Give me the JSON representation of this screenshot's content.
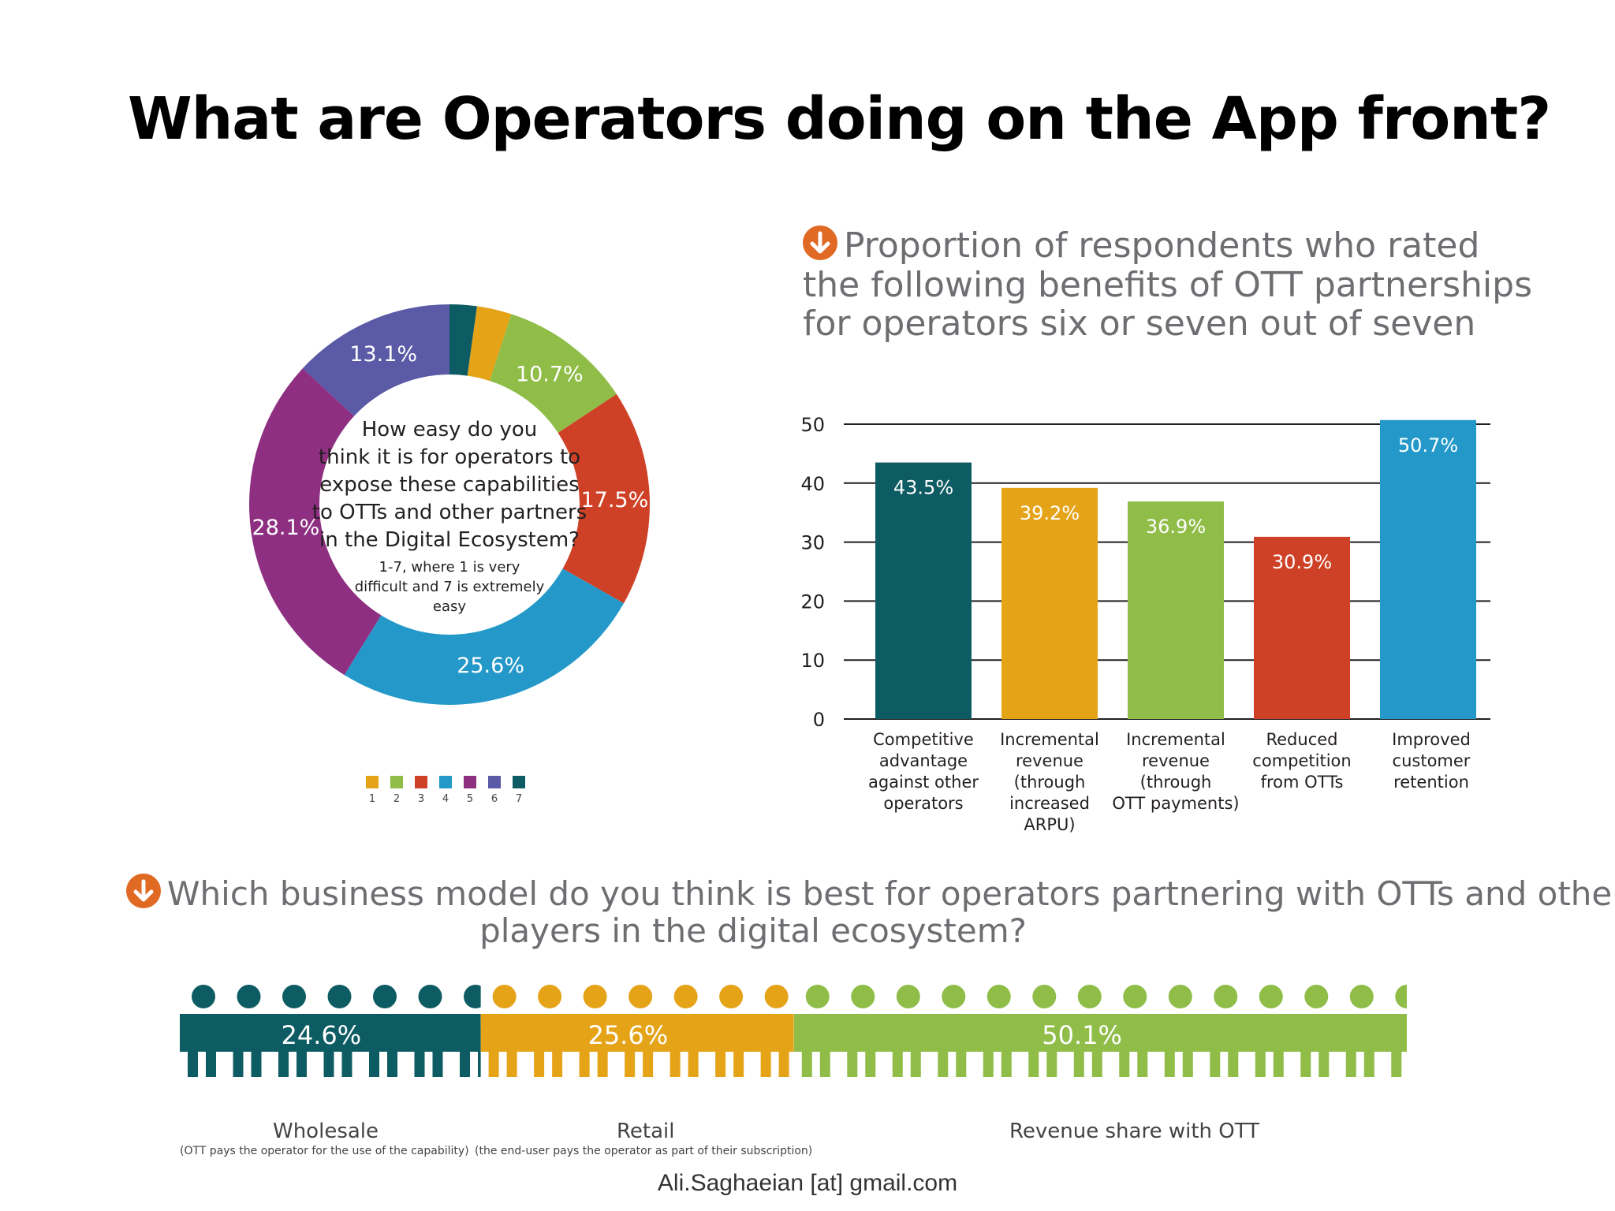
{
  "page": {
    "title": "What are Operators doing on the App front?",
    "footer": "Ali.Saghaeian [at] gmail.com"
  },
  "icons": {
    "section_marker": "down-arrow-circle-icon",
    "section_marker_color": "#e06a24"
  },
  "chart_data": [
    {
      "type": "pie",
      "variant": "donut",
      "center_text": {
        "question": [
          "How easy do you",
          "think it is for operators to",
          "expose these capabilities",
          "to OTTs and other partners",
          "in the Digital Ecosystem?"
        ],
        "note": [
          "1-7, where 1 is very",
          "difficult and 7 is extremely",
          "easy"
        ]
      },
      "slices": [
        {
          "category": "7",
          "value": 2.2,
          "label": "2.2%",
          "color": "#0e5c63"
        },
        {
          "category": "1",
          "value": 2.8,
          "label": "2.8%",
          "color": "#e5a318"
        },
        {
          "category": "2",
          "value": 10.7,
          "label": "10.7%",
          "color": "#8fbd48"
        },
        {
          "category": "3",
          "value": 17.5,
          "label": "17.5%",
          "color": "#cf4127"
        },
        {
          "category": "4",
          "value": 25.6,
          "label": "25.6%",
          "color": "#2499c9"
        },
        {
          "category": "5",
          "value": 28.1,
          "label": "28.1%",
          "color": "#8e2f82"
        },
        {
          "category": "6",
          "value": 13.1,
          "label": "13.1%",
          "color": "#5a5aa6"
        }
      ],
      "legend": {
        "placement": "bottom",
        "items": [
          {
            "label": "1",
            "color": "#e5a318"
          },
          {
            "label": "2",
            "color": "#8fbd48"
          },
          {
            "label": "3",
            "color": "#cf4127"
          },
          {
            "label": "4",
            "color": "#2499c9"
          },
          {
            "label": "5",
            "color": "#8e2f82"
          },
          {
            "label": "6",
            "color": "#5a5aa6"
          },
          {
            "label": "7",
            "color": "#0e5c63"
          }
        ]
      }
    },
    {
      "type": "bar",
      "title": [
        "Proportion of respondents who rated",
        "the following benefits of OTT partnerships",
        "for operators six or seven out of seven"
      ],
      "categories": [
        [
          "Competitive",
          "advantage",
          "against other",
          "operators"
        ],
        [
          "Incremental",
          "revenue",
          "(through",
          "increased",
          "ARPU)"
        ],
        [
          "Incremental",
          "revenue",
          "(through",
          "OTT payments)"
        ],
        [
          "Reduced",
          "competition",
          "from OTTs"
        ],
        [
          "Improved",
          "customer",
          "retention"
        ]
      ],
      "values": [
        43.5,
        39.2,
        36.9,
        30.9,
        50.7
      ],
      "value_labels": [
        "43.5%",
        "39.2%",
        "36.9%",
        "30.9%",
        "50.7%"
      ],
      "colors": [
        "#0e5c63",
        "#e5a318",
        "#8fbd48",
        "#cf4127",
        "#2499c9"
      ],
      "ylim": [
        0,
        50
      ],
      "yticks": [
        "0",
        "10",
        "20",
        "30",
        "40",
        "50"
      ],
      "grid": true
    },
    {
      "type": "bar",
      "variant": "stacked-pictogram",
      "title": [
        "Which business model do you think is best for operators partnering with OTTs and other",
        "players in the digital ecosystem?"
      ],
      "segments": [
        {
          "name": "Wholesale",
          "value": 24.6,
          "label": "24.6%",
          "color": "#0e5c63",
          "note": "(OTT pays the operator for the use of the capability)"
        },
        {
          "name": "Retail",
          "value": 25.6,
          "label": "25.6%",
          "color": "#e5a318",
          "note": "(the end-user pays the operator as part of their subscription)"
        },
        {
          "name": "Revenue share with OTT",
          "value": 50.1,
          "label": "50.1%",
          "color": "#8fbd48",
          "note": ""
        }
      ]
    }
  ]
}
